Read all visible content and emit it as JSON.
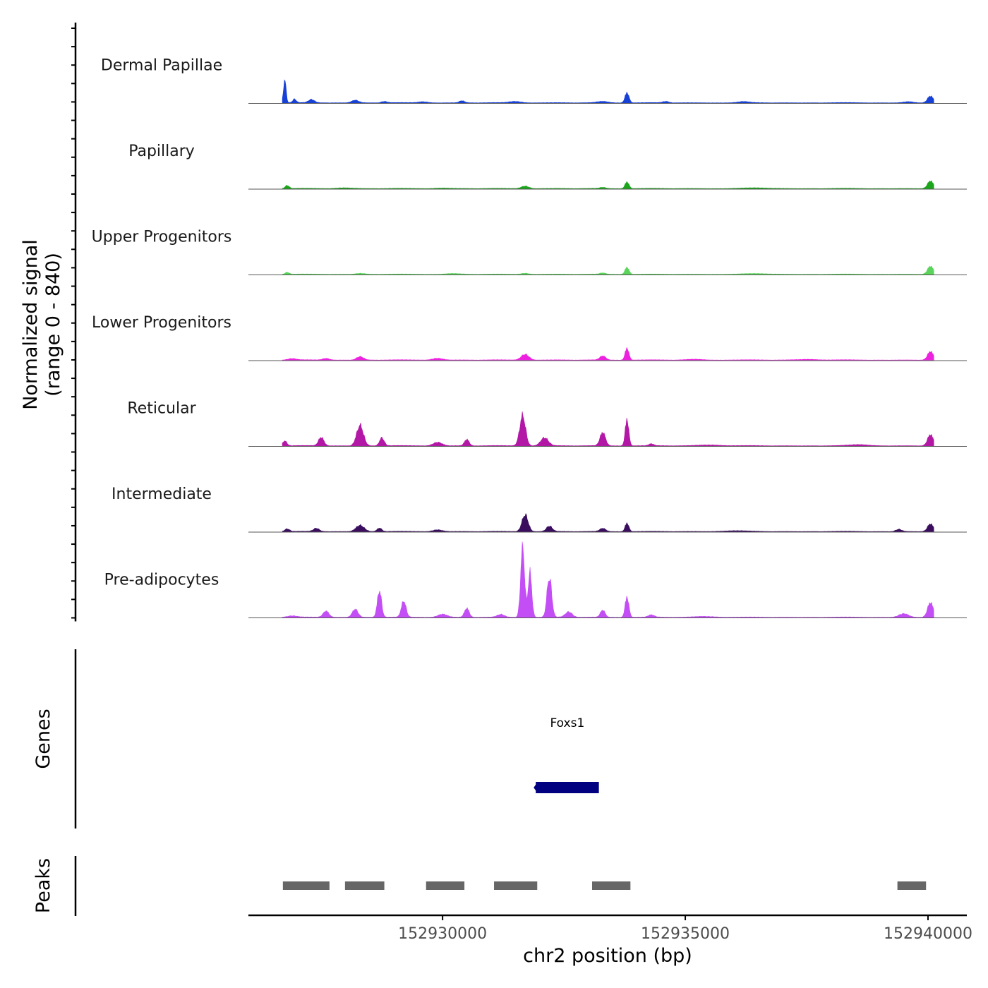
{
  "chart_data": {
    "type": "area",
    "subtype": "genome-coverage-track",
    "signal_panel": {
      "ylabel_line1": "Normalized signal",
      "ylabel_line2": "(range 0 - 840)",
      "ylim": [
        0,
        840
      ],
      "series": [
        {
          "name": "Dermal Papillae",
          "color": "#1740d6",
          "peaks": [
            {
              "pos": 152926750,
              "height": 260,
              "width": 110
            },
            {
              "pos": 152926950,
              "height": 40,
              "width": 150
            },
            {
              "pos": 152927300,
              "height": 35,
              "width": 250
            },
            {
              "pos": 152928200,
              "height": 30,
              "width": 300
            },
            {
              "pos": 152928800,
              "height": 15,
              "width": 250
            },
            {
              "pos": 152929600,
              "height": 12,
              "width": 400
            },
            {
              "pos": 152930400,
              "height": 22,
              "width": 220
            },
            {
              "pos": 152931500,
              "height": 15,
              "width": 500
            },
            {
              "pos": 152933300,
              "height": 15,
              "width": 450
            },
            {
              "pos": 152933800,
              "height": 115,
              "width": 170
            },
            {
              "pos": 152934600,
              "height": 15,
              "width": 250
            },
            {
              "pos": 152936200,
              "height": 12,
              "width": 450
            },
            {
              "pos": 152939600,
              "height": 12,
              "width": 400
            },
            {
              "pos": 152940050,
              "height": 75,
              "width": 240
            }
          ]
        },
        {
          "name": "Papillary",
          "color": "#1aa51a",
          "peaks": [
            {
              "pos": 152926800,
              "height": 35,
              "width": 170
            },
            {
              "pos": 152928000,
              "height": 8,
              "width": 700
            },
            {
              "pos": 152930000,
              "height": 6,
              "width": 600
            },
            {
              "pos": 152931700,
              "height": 28,
              "width": 320
            },
            {
              "pos": 152933300,
              "height": 12,
              "width": 250
            },
            {
              "pos": 152933800,
              "height": 75,
              "width": 170
            },
            {
              "pos": 152936500,
              "height": 6,
              "width": 1200
            },
            {
              "pos": 152940050,
              "height": 85,
              "width": 240
            }
          ]
        },
        {
          "name": "Upper Progenitors",
          "color": "#5ad45a",
          "peaks": [
            {
              "pos": 152926800,
              "height": 22,
              "width": 170
            },
            {
              "pos": 152928300,
              "height": 10,
              "width": 400
            },
            {
              "pos": 152930200,
              "height": 8,
              "width": 600
            },
            {
              "pos": 152931700,
              "height": 12,
              "width": 320
            },
            {
              "pos": 152933300,
              "height": 14,
              "width": 250
            },
            {
              "pos": 152933800,
              "height": 80,
              "width": 170
            },
            {
              "pos": 152936500,
              "height": 6,
              "width": 1200
            },
            {
              "pos": 152940050,
              "height": 90,
              "width": 240
            }
          ]
        },
        {
          "name": "Lower Progenitors",
          "color": "#ec22de",
          "peaks": [
            {
              "pos": 152926900,
              "height": 15,
              "width": 350
            },
            {
              "pos": 152927600,
              "height": 18,
              "width": 300
            },
            {
              "pos": 152928300,
              "height": 38,
              "width": 300
            },
            {
              "pos": 152929900,
              "height": 20,
              "width": 450
            },
            {
              "pos": 152931700,
              "height": 65,
              "width": 330
            },
            {
              "pos": 152933300,
              "height": 45,
              "width": 250
            },
            {
              "pos": 152933800,
              "height": 135,
              "width": 160
            },
            {
              "pos": 152935200,
              "height": 8,
              "width": 700
            },
            {
              "pos": 152937500,
              "height": 8,
              "width": 900
            },
            {
              "pos": 152940050,
              "height": 95,
              "width": 240
            }
          ]
        },
        {
          "name": "Reticular",
          "color": "#b317a6",
          "peaks": [
            {
              "pos": 152926750,
              "height": 55,
              "width": 180
            },
            {
              "pos": 152927500,
              "height": 95,
              "width": 230
            },
            {
              "pos": 152928300,
              "height": 230,
              "width": 290
            },
            {
              "pos": 152928750,
              "height": 90,
              "width": 200
            },
            {
              "pos": 152929900,
              "height": 40,
              "width": 380
            },
            {
              "pos": 152930500,
              "height": 70,
              "width": 200
            },
            {
              "pos": 152931650,
              "height": 340,
              "width": 250
            },
            {
              "pos": 152932100,
              "height": 90,
              "width": 330
            },
            {
              "pos": 152933300,
              "height": 150,
              "width": 230
            },
            {
              "pos": 152933800,
              "height": 300,
              "width": 150
            },
            {
              "pos": 152934300,
              "height": 20,
              "width": 200
            },
            {
              "pos": 152935500,
              "height": 10,
              "width": 900
            },
            {
              "pos": 152938600,
              "height": 12,
              "width": 800
            },
            {
              "pos": 152940050,
              "height": 125,
              "width": 240
            }
          ]
        },
        {
          "name": "Intermediate",
          "color": "#3a0d5e",
          "peaks": [
            {
              "pos": 152926800,
              "height": 30,
              "width": 200
            },
            {
              "pos": 152927400,
              "height": 35,
              "width": 250
            },
            {
              "pos": 152928300,
              "height": 70,
              "width": 350
            },
            {
              "pos": 152928700,
              "height": 40,
              "width": 200
            },
            {
              "pos": 152929900,
              "height": 20,
              "width": 400
            },
            {
              "pos": 152931700,
              "height": 190,
              "width": 260
            },
            {
              "pos": 152932200,
              "height": 60,
              "width": 250
            },
            {
              "pos": 152933300,
              "height": 35,
              "width": 250
            },
            {
              "pos": 152933800,
              "height": 95,
              "width": 160
            },
            {
              "pos": 152936000,
              "height": 8,
              "width": 1000
            },
            {
              "pos": 152939400,
              "height": 25,
              "width": 250
            },
            {
              "pos": 152940050,
              "height": 85,
              "width": 240
            }
          ]
        },
        {
          "name": "Pre-adipocytes",
          "color": "#c44ef5",
          "peaks": [
            {
              "pos": 152926900,
              "height": 15,
              "width": 400
            },
            {
              "pos": 152927600,
              "height": 70,
              "width": 250
            },
            {
              "pos": 152928200,
              "height": 90,
              "width": 250
            },
            {
              "pos": 152928700,
              "height": 300,
              "width": 180
            },
            {
              "pos": 152929200,
              "height": 180,
              "width": 200
            },
            {
              "pos": 152930000,
              "height": 35,
              "width": 400
            },
            {
              "pos": 152930500,
              "height": 100,
              "width": 200
            },
            {
              "pos": 152931200,
              "height": 30,
              "width": 300
            },
            {
              "pos": 152931650,
              "height": 800,
              "width": 170
            },
            {
              "pos": 152931800,
              "height": 500,
              "width": 160
            },
            {
              "pos": 152932200,
              "height": 450,
              "width": 200
            },
            {
              "pos": 152932600,
              "height": 60,
              "width": 300
            },
            {
              "pos": 152933300,
              "height": 80,
              "width": 200
            },
            {
              "pos": 152933800,
              "height": 230,
              "width": 160
            },
            {
              "pos": 152934300,
              "height": 25,
              "width": 250
            },
            {
              "pos": 152935400,
              "height": 10,
              "width": 800
            },
            {
              "pos": 152939500,
              "height": 40,
              "width": 400
            },
            {
              "pos": 152940050,
              "height": 165,
              "width": 240
            }
          ]
        }
      ]
    },
    "genes_panel": {
      "label": "Genes",
      "genes": [
        {
          "name": "Foxs1",
          "start": 152931920,
          "end": 152933220,
          "strand": "-",
          "color": "#000080"
        }
      ]
    },
    "peaks_panel": {
      "label": "Peaks",
      "color": "#666666",
      "peaks": [
        {
          "start": 152926710,
          "end": 152927670
        },
        {
          "start": 152927990,
          "end": 152928800
        },
        {
          "start": 152929660,
          "end": 152930450
        },
        {
          "start": 152931060,
          "end": 152931950
        },
        {
          "start": 152933080,
          "end": 152933870
        },
        {
          "start": 152939370,
          "end": 152939960
        }
      ]
    },
    "x_axis": {
      "xlabel": "chr2 position (bp)",
      "xlim": [
        152926000,
        152940800
      ],
      "ticks": [
        152930000,
        152935000,
        152940000
      ],
      "tick_labels": [
        "152930000",
        "152935000",
        "152940000"
      ]
    },
    "grid": false,
    "legend": "none"
  }
}
